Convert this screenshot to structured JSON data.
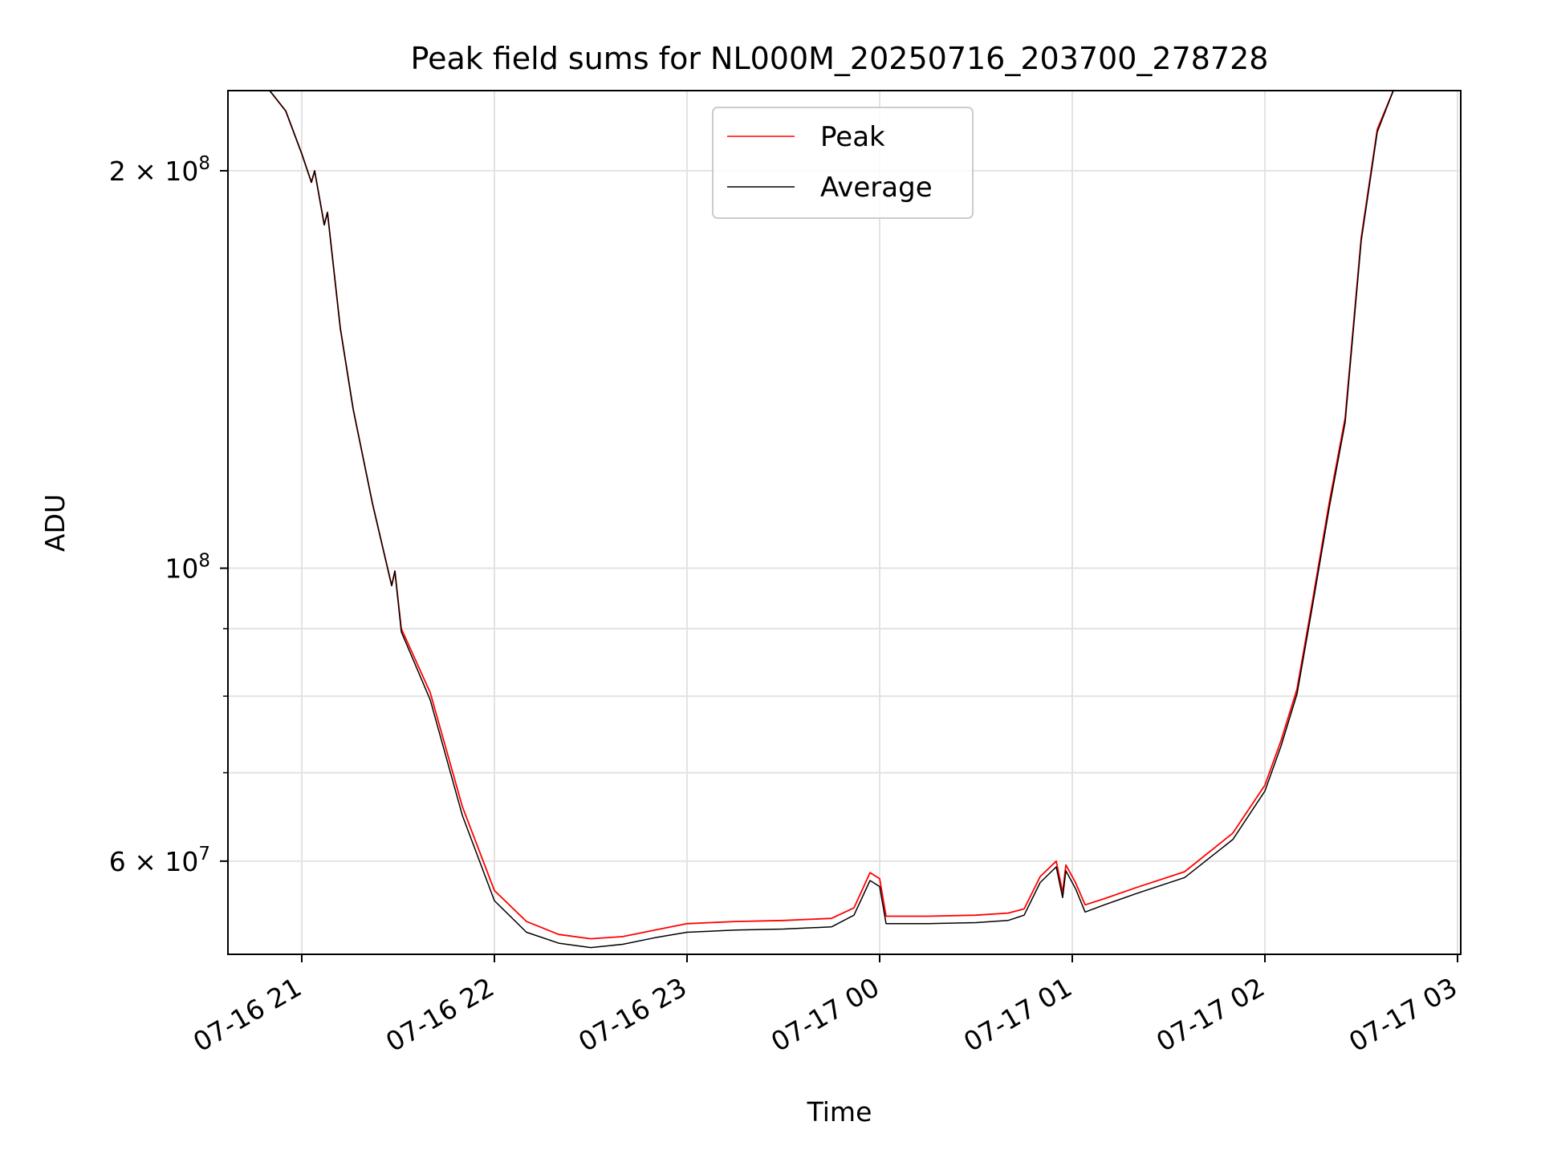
{
  "chart_data": {
    "type": "line",
    "title": "Peak field sums for NL000M_20250716_203700_278728",
    "xlabel": "Time",
    "ylabel": "ADU",
    "y_scale": "log",
    "ylim": [
      51000000,
      230000000
    ],
    "xlim": [
      "2025-07-16 20:37",
      "2025-07-17 03:01"
    ],
    "grid": true,
    "legend_position": "top-center",
    "x_tick_labels": [
      {
        "label": "07-16 21",
        "x": "2025-07-16 21:00"
      },
      {
        "label": "07-16 22",
        "x": "2025-07-16 22:00"
      },
      {
        "label": "07-16 23",
        "x": "2025-07-16 23:00"
      },
      {
        "label": "07-17 00",
        "x": "2025-07-17 00:00"
      },
      {
        "label": "07-17 01",
        "x": "2025-07-17 01:00"
      },
      {
        "label": "07-17 02",
        "x": "2025-07-17 02:00"
      },
      {
        "label": "07-17 03",
        "x": "2025-07-17 03:00"
      }
    ],
    "y_major_ticks": [
      {
        "value": 200000000,
        "mantissa": "2",
        "base": "10",
        "exponent": "8"
      },
      {
        "value": 100000000,
        "mantissa": "",
        "base": "10",
        "exponent": "8"
      },
      {
        "value": 60000000,
        "mantissa": "6",
        "base": "10",
        "exponent": "7"
      }
    ],
    "y_minor_ticks": [
      90000000,
      80000000,
      70000000,
      60000000
    ],
    "series": [
      {
        "name": "Peak",
        "color": "#ff0000",
        "points": [
          [
            "2025-07-16 20:37",
            230000000
          ],
          [
            "2025-07-16 20:50",
            230000000
          ],
          [
            "2025-07-16 20:55",
            222000000
          ],
          [
            "2025-07-16 21:00",
            206000000
          ],
          [
            "2025-07-16 21:03",
            196000000
          ],
          [
            "2025-07-16 21:04",
            200000000
          ],
          [
            "2025-07-16 21:07",
            182000000
          ],
          [
            "2025-07-16 21:08",
            186000000
          ],
          [
            "2025-07-16 21:12",
            152000000
          ],
          [
            "2025-07-16 21:16",
            132000000
          ],
          [
            "2025-07-16 21:22",
            112000000
          ],
          [
            "2025-07-16 21:28",
            97000000
          ],
          [
            "2025-07-16 21:29",
            99500000
          ],
          [
            "2025-07-16 21:31",
            90000000
          ],
          [
            "2025-07-16 21:40",
            80500000
          ],
          [
            "2025-07-16 21:50",
            66000000
          ],
          [
            "2025-07-16 22:00",
            57000000
          ],
          [
            "2025-07-16 22:10",
            54000000
          ],
          [
            "2025-07-16 22:20",
            52800000
          ],
          [
            "2025-07-16 22:30",
            52400000
          ],
          [
            "2025-07-16 22:40",
            52600000
          ],
          [
            "2025-07-16 22:50",
            53200000
          ],
          [
            "2025-07-16 23:00",
            53800000
          ],
          [
            "2025-07-16 23:15",
            54000000
          ],
          [
            "2025-07-16 23:30",
            54100000
          ],
          [
            "2025-07-16 23:45",
            54300000
          ],
          [
            "2025-07-16 23:52",
            55300000
          ],
          [
            "2025-07-16 23:57",
            58800000
          ],
          [
            "2025-07-17 00:00",
            58200000
          ],
          [
            "2025-07-17 00:02",
            54500000
          ],
          [
            "2025-07-17 00:15",
            54500000
          ],
          [
            "2025-07-17 00:30",
            54600000
          ],
          [
            "2025-07-17 00:40",
            54800000
          ],
          [
            "2025-07-17 00:45",
            55200000
          ],
          [
            "2025-07-17 00:50",
            58400000
          ],
          [
            "2025-07-17 00:55",
            60000000
          ],
          [
            "2025-07-17 00:57",
            56800000
          ],
          [
            "2025-07-17 00:58",
            59600000
          ],
          [
            "2025-07-17 01:01",
            57800000
          ],
          [
            "2025-07-17 01:04",
            55600000
          ],
          [
            "2025-07-17 01:10",
            56200000
          ],
          [
            "2025-07-17 01:20",
            57300000
          ],
          [
            "2025-07-17 01:35",
            58900000
          ],
          [
            "2025-07-17 01:50",
            63000000
          ],
          [
            "2025-07-17 02:00",
            68500000
          ],
          [
            "2025-07-17 02:05",
            74000000
          ],
          [
            "2025-07-17 02:10",
            81000000
          ],
          [
            "2025-07-17 02:15",
            95000000
          ],
          [
            "2025-07-17 02:20",
            112000000
          ],
          [
            "2025-07-17 02:25",
            130000000
          ],
          [
            "2025-07-17 02:30",
            178000000
          ],
          [
            "2025-07-17 02:35",
            215000000
          ],
          [
            "2025-07-17 02:40",
            230000000
          ],
          [
            "2025-07-17 03:01",
            230000000
          ]
        ]
      },
      {
        "name": "Average",
        "color": "#000000",
        "points": [
          [
            "2025-07-16 20:37",
            230000000
          ],
          [
            "2025-07-16 20:50",
            230000000
          ],
          [
            "2025-07-16 20:55",
            222000000
          ],
          [
            "2025-07-16 21:00",
            206000000
          ],
          [
            "2025-07-16 21:03",
            196000000
          ],
          [
            "2025-07-16 21:04",
            200000000
          ],
          [
            "2025-07-16 21:07",
            182000000
          ],
          [
            "2025-07-16 21:08",
            186000000
          ],
          [
            "2025-07-16 21:12",
            152000000
          ],
          [
            "2025-07-16 21:16",
            132000000
          ],
          [
            "2025-07-16 21:22",
            112000000
          ],
          [
            "2025-07-16 21:28",
            97000000
          ],
          [
            "2025-07-16 21:29",
            99500000
          ],
          [
            "2025-07-16 21:31",
            89500000
          ],
          [
            "2025-07-16 21:40",
            79500000
          ],
          [
            "2025-07-16 21:50",
            65000000
          ],
          [
            "2025-07-16 22:00",
            56000000
          ],
          [
            "2025-07-16 22:10",
            53000000
          ],
          [
            "2025-07-16 22:20",
            52000000
          ],
          [
            "2025-07-16 22:30",
            51600000
          ],
          [
            "2025-07-16 22:40",
            51900000
          ],
          [
            "2025-07-16 22:50",
            52500000
          ],
          [
            "2025-07-16 23:00",
            53000000
          ],
          [
            "2025-07-16 23:15",
            53200000
          ],
          [
            "2025-07-16 23:30",
            53300000
          ],
          [
            "2025-07-16 23:45",
            53500000
          ],
          [
            "2025-07-16 23:52",
            54600000
          ],
          [
            "2025-07-16 23:57",
            58000000
          ],
          [
            "2025-07-17 00:00",
            57400000
          ],
          [
            "2025-07-17 00:02",
            53800000
          ],
          [
            "2025-07-17 00:15",
            53800000
          ],
          [
            "2025-07-17 00:30",
            53900000
          ],
          [
            "2025-07-17 00:40",
            54100000
          ],
          [
            "2025-07-17 00:45",
            54600000
          ],
          [
            "2025-07-17 00:50",
            57800000
          ],
          [
            "2025-07-17 00:55",
            59400000
          ],
          [
            "2025-07-17 00:57",
            56300000
          ],
          [
            "2025-07-17 00:58",
            59000000
          ],
          [
            "2025-07-17 01:01",
            57200000
          ],
          [
            "2025-07-17 01:04",
            54900000
          ],
          [
            "2025-07-17 01:10",
            55600000
          ],
          [
            "2025-07-17 01:20",
            56700000
          ],
          [
            "2025-07-17 01:35",
            58300000
          ],
          [
            "2025-07-17 01:50",
            62300000
          ],
          [
            "2025-07-17 02:00",
            67800000
          ],
          [
            "2025-07-17 02:05",
            73300000
          ],
          [
            "2025-07-17 02:10",
            80300000
          ],
          [
            "2025-07-17 02:15",
            94200000
          ],
          [
            "2025-07-17 02:20",
            111000000
          ],
          [
            "2025-07-17 02:25",
            129000000
          ],
          [
            "2025-07-17 02:30",
            177000000
          ],
          [
            "2025-07-17 02:35",
            214000000
          ],
          [
            "2025-07-17 02:40",
            230000000
          ],
          [
            "2025-07-17 03:01",
            230000000
          ]
        ]
      }
    ]
  }
}
